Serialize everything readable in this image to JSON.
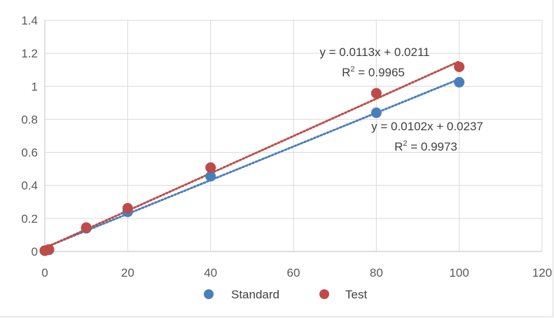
{
  "chart_data": {
    "type": "scatter",
    "xlim": [
      0,
      120
    ],
    "ylim": [
      0,
      1.4
    ],
    "x_ticks": [
      "0",
      "20",
      "40",
      "60",
      "80",
      "100",
      "120"
    ],
    "y_ticks": [
      "0",
      "0.2",
      "0.4",
      "0.6",
      "0.8",
      "1",
      "1.2",
      "1.4"
    ],
    "grid": true,
    "legend_position": "bottom",
    "series": [
      {
        "name": "Standard",
        "color": "#4a7ebb",
        "points": [
          [
            0,
            0.005
          ],
          [
            1,
            0.01
          ],
          [
            10,
            0.14
          ],
          [
            20,
            0.24
          ],
          [
            40,
            0.455
          ],
          [
            80,
            0.84
          ],
          [
            100,
            1.025
          ]
        ],
        "trendline": {
          "slope": 0.0102,
          "intercept": 0.0237,
          "equation": "y = 0.0102x + 0.0237",
          "r2_prefix": "R",
          "r2_sup": "2",
          "r2_value": " = 0.9973"
        }
      },
      {
        "name": "Test",
        "color": "#be4b48",
        "points": [
          [
            0,
            0.005
          ],
          [
            1,
            0.012
          ],
          [
            10,
            0.145
          ],
          [
            20,
            0.262
          ],
          [
            40,
            0.508
          ],
          [
            80,
            0.958
          ],
          [
            100,
            1.118
          ]
        ],
        "trendline": {
          "slope": 0.0113,
          "intercept": 0.0211,
          "equation": "y = 0.0113x + 0.0211",
          "r2_prefix": "R",
          "r2_sup": "2",
          "r2_value": " = 0.9965"
        }
      }
    ]
  }
}
